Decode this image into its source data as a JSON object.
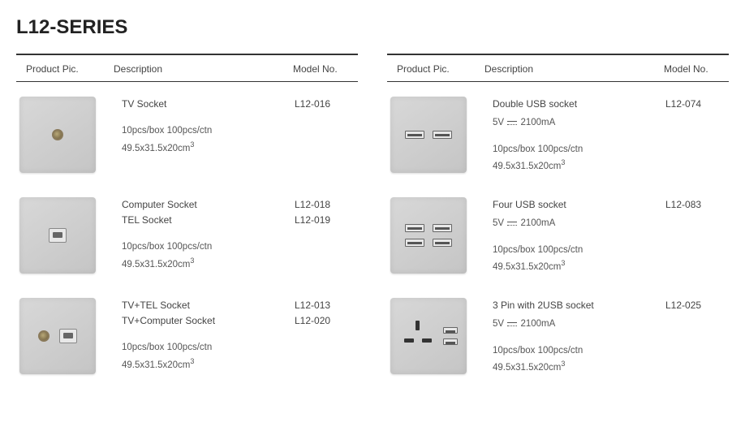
{
  "title": "L12-SERIES",
  "headers": {
    "pic": "Product Pic.",
    "desc": "Description",
    "model": "Model No."
  },
  "specs_common": {
    "packaging": "10pcs/box 100pcs/ctn",
    "dimensions": "49.5x31.5x20cm",
    "exponent": "3"
  },
  "usb_spec": {
    "voltage": "5V",
    "current": "2100mA"
  },
  "left": [
    {
      "icon": "tv",
      "lines": [
        {
          "desc": "TV Socket",
          "model": "L12-016"
        }
      ]
    },
    {
      "icon": "rj",
      "lines": [
        {
          "desc": "Computer Socket",
          "model": "L12-018"
        },
        {
          "desc": "TEL Socket",
          "model": "L12-019"
        }
      ]
    },
    {
      "icon": "tv-rj",
      "lines": [
        {
          "desc": "TV+TEL Socket",
          "model": "L12-013"
        },
        {
          "desc": "TV+Computer Socket",
          "model": "L12-020"
        }
      ]
    }
  ],
  "right": [
    {
      "icon": "usb2",
      "lines": [
        {
          "desc": "Double USB socket",
          "model": "L12-074"
        }
      ],
      "has_voltage": true
    },
    {
      "icon": "usb4",
      "lines": [
        {
          "desc": "Four USB socket",
          "model": "L12-083"
        }
      ],
      "has_voltage": true
    },
    {
      "icon": "3pin-usb",
      "lines": [
        {
          "desc": "3 Pin with 2USB socket",
          "model": "L12-025"
        }
      ],
      "has_voltage": true
    }
  ]
}
